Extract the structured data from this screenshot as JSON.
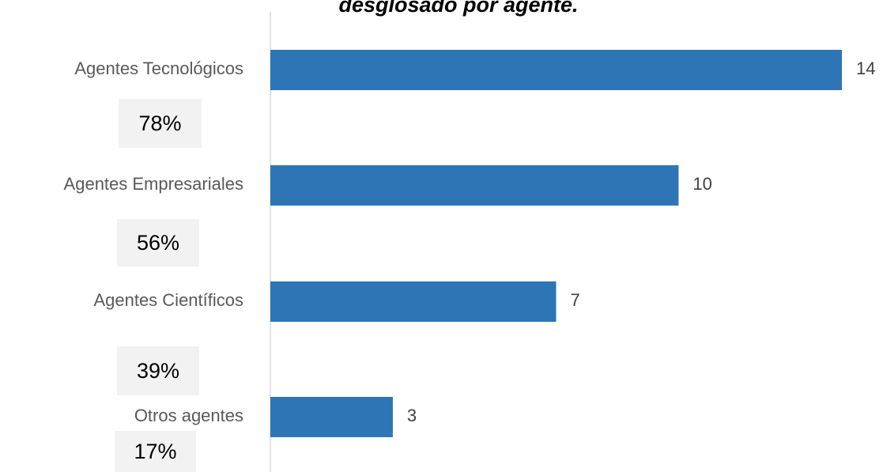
{
  "chart_data": {
    "type": "barh",
    "title": "desglosado por agente.",
    "categories": [
      "Agentes Tecnológicos",
      "Agentes Empresariales",
      "Agentes Científicos",
      "Otros agentes"
    ],
    "values": [
      14,
      10,
      7,
      3
    ],
    "annotations": [
      "78%",
      "56%",
      "39%",
      "17%"
    ],
    "color": "#2e75b6",
    "xlim": [
      0,
      14
    ]
  }
}
